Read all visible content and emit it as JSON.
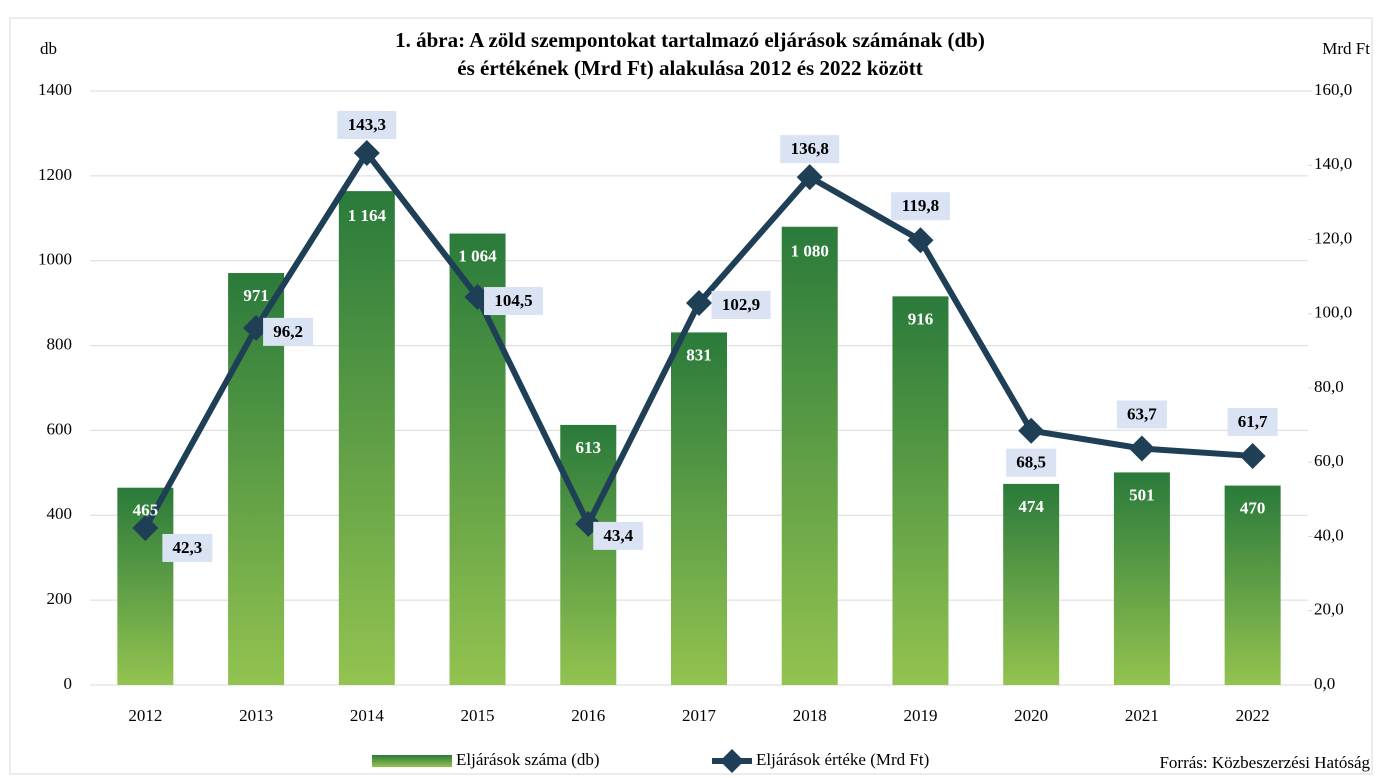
{
  "chart_data": {
    "type": "bar-line",
    "title": [
      "1. ábra: A zöld szempontokat tartalmazó eljárások számának (db)",
      "és értékének (Mrd Ft) alakulása 2012 és 2022 között"
    ],
    "y_label": "db",
    "y2_label": "Mrd Ft",
    "source": "Forrás: Közbeszerzési Hatóság",
    "categories": [
      "2012",
      "2013",
      "2014",
      "2015",
      "2016",
      "2017",
      "2018",
      "2019",
      "2020",
      "2021",
      "2022"
    ],
    "series": [
      {
        "name": "Eljárások száma (db)",
        "type": "bar",
        "color": [
          "#2a7a3b",
          "#93c350"
        ],
        "values": [
          465,
          971,
          1164,
          1064,
          613,
          831,
          1080,
          916,
          474,
          501,
          470
        ],
        "value_labels": [
          "465",
          "971",
          "1 164",
          "1 064",
          "613",
          "831",
          "1 080",
          "916",
          "474",
          "501",
          "470"
        ]
      },
      {
        "name": "Eljárások értéke (Mrd Ft)",
        "type": "line",
        "axis": "y2",
        "color": "#1f3f57",
        "values": [
          42.3,
          96.2,
          143.3,
          104.5,
          43.4,
          102.9,
          136.8,
          119.8,
          68.5,
          63.7,
          61.7
        ],
        "value_labels": [
          "42,3",
          "96,2",
          "143,3",
          "104,5",
          "43,4",
          "102,9",
          "136,8",
          "119,8",
          "68,5",
          "63,7",
          "61,7"
        ]
      }
    ],
    "ylim": [
      0,
      1400
    ],
    "yticks": [
      0,
      200,
      400,
      600,
      800,
      1000,
      1200,
      1400
    ],
    "y2lim": [
      0,
      160
    ],
    "y2ticks": [
      {
        "value": 0,
        "label": "0,0"
      },
      {
        "value": 20,
        "label": "20,0"
      },
      {
        "value": 40,
        "label": "40,0"
      },
      {
        "value": 60,
        "label": "60,0"
      },
      {
        "value": 80,
        "label": "80,0"
      },
      {
        "value": 100,
        "label": "100,0"
      },
      {
        "value": 120,
        "label": "120,0"
      },
      {
        "value": 140,
        "label": "140,0"
      },
      {
        "value": 160,
        "label": "160,0"
      }
    ],
    "grid": true
  }
}
